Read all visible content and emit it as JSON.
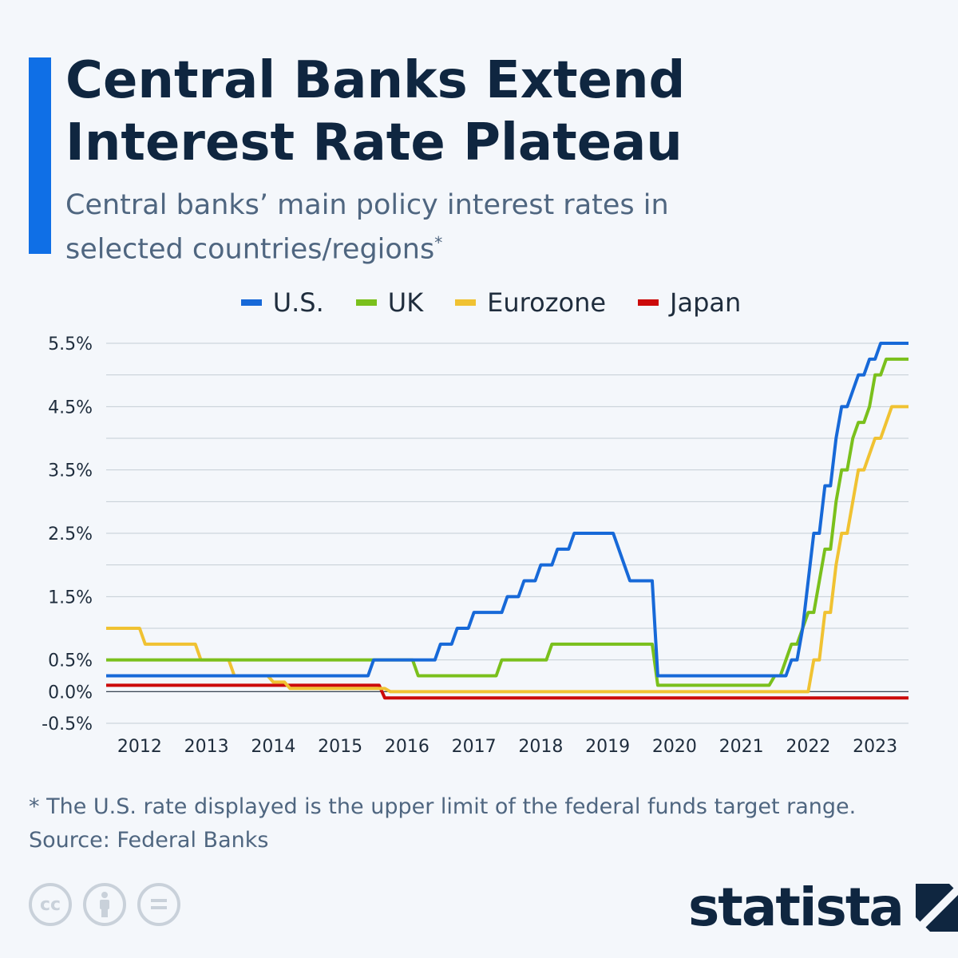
{
  "header": {
    "title": "Central Banks Extend Interest Rate Plateau",
    "subtitle": "Central banks’ main policy interest rates in selected countries/regions",
    "subtitle_mark": "*"
  },
  "footer": {
    "note": "* The U.S. rate displayed is the upper limit of the federal funds target range.",
    "source": "Source: Federal Banks",
    "brand": "statista",
    "license_icons": [
      "cc-icon",
      "attribution-icon",
      "no-derivatives-icon"
    ]
  },
  "colors": {
    "accent": "#0f6fe6",
    "title": "#0f2640",
    "background": "#f4f7fb"
  },
  "chart_data": {
    "type": "line",
    "step": true,
    "ylabel": "",
    "xlabel": "",
    "xlim": [
      "2012-01",
      "2024-01"
    ],
    "ylim": [
      -0.5,
      5.5
    ],
    "x_ticks": [
      "2012",
      "2013",
      "2014",
      "2015",
      "2016",
      "2017",
      "2018",
      "2019",
      "2020",
      "2021",
      "2022",
      "2023"
    ],
    "y_ticks": [
      {
        "value": 5.5,
        "label": "5.5%"
      },
      {
        "value": 4.5,
        "label": "4.5%"
      },
      {
        "value": 3.5,
        "label": "3.5%"
      },
      {
        "value": 2.5,
        "label": "2.5%"
      },
      {
        "value": 1.5,
        "label": "1.5%"
      },
      {
        "value": 0.5,
        "label": "0.5%"
      },
      {
        "value": 0.0,
        "label": "0.0%"
      },
      {
        "value": -0.5,
        "label": "-0.5%"
      }
    ],
    "grid": true,
    "grid_step": 0.5,
    "legend_position": "top-center",
    "series": [
      {
        "name": "U.S.",
        "color": "#1769d8",
        "points": [
          [
            "2012-01",
            0.25
          ],
          [
            "2015-12",
            0.5
          ],
          [
            "2016-12",
            0.75
          ],
          [
            "2017-03",
            1.0
          ],
          [
            "2017-06",
            1.25
          ],
          [
            "2017-12",
            1.5
          ],
          [
            "2018-03",
            1.75
          ],
          [
            "2018-06",
            2.0
          ],
          [
            "2018-09",
            2.25
          ],
          [
            "2018-12",
            2.5
          ],
          [
            "2019-08",
            2.25
          ],
          [
            "2019-09",
            2.0
          ],
          [
            "2019-10",
            1.75
          ],
          [
            "2020-03",
            0.25
          ],
          [
            "2022-03",
            0.5
          ],
          [
            "2022-05",
            1.0
          ],
          [
            "2022-06",
            1.75
          ],
          [
            "2022-07",
            2.5
          ],
          [
            "2022-09",
            3.25
          ],
          [
            "2022-11",
            4.0
          ],
          [
            "2022-12",
            4.5
          ],
          [
            "2023-02",
            4.75
          ],
          [
            "2023-03",
            5.0
          ],
          [
            "2023-05",
            5.25
          ],
          [
            "2023-07",
            5.5
          ]
        ]
      },
      {
        "name": "UK",
        "color": "#7ac01c",
        "points": [
          [
            "2012-01",
            0.5
          ],
          [
            "2016-08",
            0.25
          ],
          [
            "2017-11",
            0.5
          ],
          [
            "2018-08",
            0.75
          ],
          [
            "2020-03",
            0.1
          ],
          [
            "2021-12",
            0.25
          ],
          [
            "2022-02",
            0.5
          ],
          [
            "2022-03",
            0.75
          ],
          [
            "2022-05",
            1.0
          ],
          [
            "2022-06",
            1.25
          ],
          [
            "2022-08",
            1.75
          ],
          [
            "2022-09",
            2.25
          ],
          [
            "2022-11",
            3.0
          ],
          [
            "2022-12",
            3.5
          ],
          [
            "2023-02",
            4.0
          ],
          [
            "2023-03",
            4.25
          ],
          [
            "2023-05",
            4.5
          ],
          [
            "2023-06",
            5.0
          ],
          [
            "2023-08",
            5.25
          ]
        ]
      },
      {
        "name": "Eurozone",
        "color": "#f0c232",
        "points": [
          [
            "2012-01",
            1.0
          ],
          [
            "2012-07",
            0.75
          ],
          [
            "2013-05",
            0.5
          ],
          [
            "2013-11",
            0.25
          ],
          [
            "2014-06",
            0.15
          ],
          [
            "2014-09",
            0.05
          ],
          [
            "2016-03",
            0.0
          ],
          [
            "2022-07",
            0.5
          ],
          [
            "2022-09",
            1.25
          ],
          [
            "2022-11",
            2.0
          ],
          [
            "2022-12",
            2.5
          ],
          [
            "2023-02",
            3.0
          ],
          [
            "2023-03",
            3.5
          ],
          [
            "2023-05",
            3.75
          ],
          [
            "2023-06",
            4.0
          ],
          [
            "2023-08",
            4.25
          ],
          [
            "2023-09",
            4.5
          ]
        ]
      },
      {
        "name": "Japan",
        "color": "#cc0a0a",
        "points": [
          [
            "2012-01",
            0.1
          ],
          [
            "2016-02",
            -0.1
          ]
        ]
      }
    ]
  }
}
